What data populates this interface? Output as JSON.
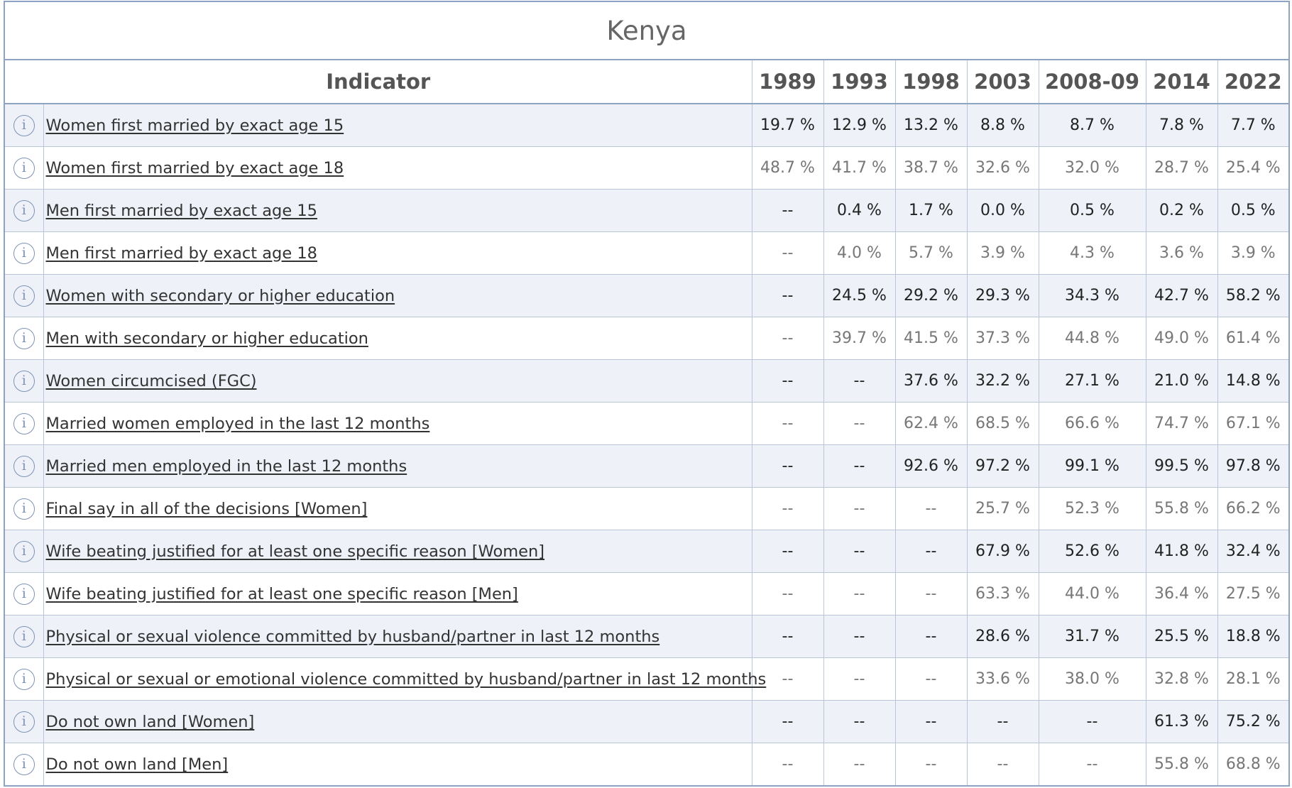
{
  "title": "Kenya",
  "columns": {
    "indicator": "Indicator",
    "years": [
      "1989",
      "1993",
      "1998",
      "2003",
      "2008-09",
      "2014",
      "2022"
    ]
  },
  "rows": [
    {
      "label": "Women first married by exact age 15",
      "values": [
        "19.7 %",
        "12.9 %",
        "13.2 %",
        "8.8 %",
        "8.7 %",
        "7.8 %",
        "7.7 %"
      ],
      "icon": "info-icon"
    },
    {
      "label": "Women first married by exact age 18",
      "values": [
        "48.7 %",
        "41.7 %",
        "38.7 %",
        "32.6 %",
        "32.0 %",
        "28.7 %",
        "25.4 %"
      ],
      "icon": "info-icon"
    },
    {
      "label": "Men first married by exact age 15",
      "values": [
        "--",
        "0.4 %",
        "1.7 %",
        "0.0 %",
        "0.5 %",
        "0.2 %",
        "0.5 %"
      ],
      "icon": "info-icon"
    },
    {
      "label": "Men first married by exact age 18",
      "values": [
        "--",
        "4.0 %",
        "5.7 %",
        "3.9 %",
        "4.3 %",
        "3.6 %",
        "3.9 %"
      ],
      "icon": "info-icon"
    },
    {
      "label": "Women with secondary or higher education",
      "values": [
        "--",
        "24.5 %",
        "29.2 %",
        "29.3 %",
        "34.3 %",
        "42.7 %",
        "58.2 %"
      ],
      "icon": "info-icon"
    },
    {
      "label": "Men with secondary or higher education",
      "values": [
        "--",
        "39.7 %",
        "41.5 %",
        "37.3 %",
        "44.8 %",
        "49.0 %",
        "61.4 %"
      ],
      "icon": "info-icon"
    },
    {
      "label": "Women circumcised (FGC)",
      "values": [
        "--",
        "--",
        "37.6 %",
        "32.2 %",
        "27.1 %",
        "21.0 %",
        "14.8 %"
      ],
      "icon": "info-icon"
    },
    {
      "label": "Married women employed in the last 12 months",
      "values": [
        "--",
        "--",
        "62.4 %",
        "68.5 %",
        "66.6 %",
        "74.7 %",
        "67.1 %"
      ],
      "icon": "info-icon"
    },
    {
      "label": "Married men employed in the last 12 months",
      "values": [
        "--",
        "--",
        "92.6 %",
        "97.2 %",
        "99.1 %",
        "99.5 %",
        "97.8 %"
      ],
      "icon": "info-icon"
    },
    {
      "label": "Final say in all of the decisions [Women]",
      "values": [
        "--",
        "--",
        "--",
        "25.7 %",
        "52.3 %",
        "55.8 %",
        "66.2 %"
      ],
      "icon": "info-icon"
    },
    {
      "label": "Wife beating justified for at least one specific reason [Women]",
      "values": [
        "--",
        "--",
        "--",
        "67.9 %",
        "52.6 %",
        "41.8 %",
        "32.4 %"
      ],
      "icon": "info-icon"
    },
    {
      "label": "Wife beating justified for at least one specific reason [Men]",
      "values": [
        "--",
        "--",
        "--",
        "63.3 %",
        "44.0 %",
        "36.4 %",
        "27.5 %"
      ],
      "icon": "info-icon"
    },
    {
      "label": "Physical or sexual violence committed by husband/partner in last 12 months",
      "values": [
        "--",
        "--",
        "--",
        "28.6 %",
        "31.7 %",
        "25.5 %",
        "18.8 %"
      ],
      "icon": "info-icon"
    },
    {
      "label": "Physical or sexual or emotional violence committed by husband/partner in last 12 months",
      "values": [
        "--",
        "--",
        "--",
        "33.6 %",
        "38.0 %",
        "32.8 %",
        "28.1 %"
      ],
      "icon": "info-icon"
    },
    {
      "label": "Do not own land [Women]",
      "values": [
        "--",
        "--",
        "--",
        "--",
        "--",
        "61.3 %",
        "75.2 %"
      ],
      "icon": "info-icon"
    },
    {
      "label": "Do not own land [Men]",
      "values": [
        "--",
        "--",
        "--",
        "--",
        "--",
        "55.8 %",
        "68.8 %"
      ],
      "icon": "info-icon"
    }
  ]
}
